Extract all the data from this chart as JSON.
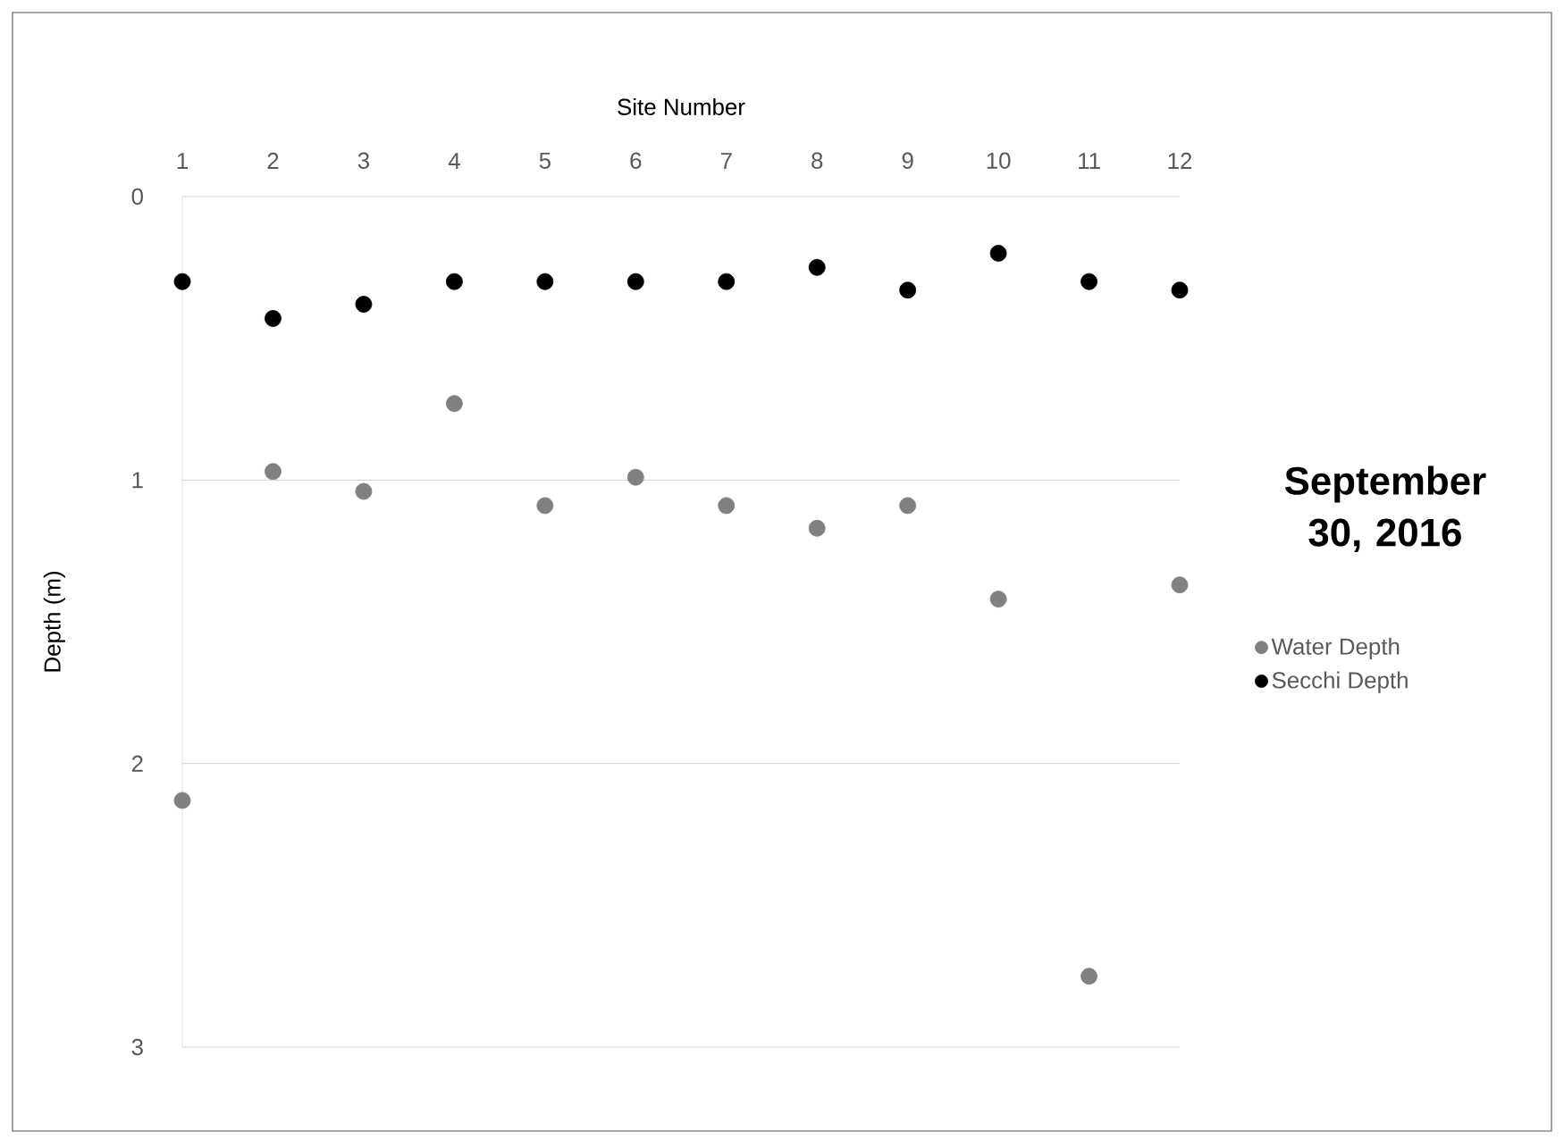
{
  "chart_data": {
    "type": "scatter",
    "title": "September 30, 2016",
    "xlabel": "Site Number",
    "ylabel": "Depth (m)",
    "x": [
      1,
      2,
      3,
      4,
      5,
      6,
      7,
      8,
      9,
      10,
      11,
      12
    ],
    "series": [
      {
        "name": "Water Depth",
        "color": "#808080",
        "values": [
          2.13,
          0.97,
          1.04,
          0.73,
          1.09,
          0.99,
          1.09,
          1.17,
          1.09,
          1.42,
          2.75,
          1.37
        ]
      },
      {
        "name": "Secchi Depth",
        "color": "#000000",
        "values": [
          0.3,
          0.43,
          0.38,
          0.3,
          0.3,
          0.3,
          0.3,
          0.25,
          0.33,
          0.2,
          0.3,
          0.33
        ]
      }
    ],
    "xlim": [
      1,
      12
    ],
    "xticks": [
      1,
      2,
      3,
      4,
      5,
      6,
      7,
      8,
      9,
      10,
      11,
      12
    ],
    "ylim": [
      3,
      0
    ],
    "yticks": [
      0,
      1,
      2,
      3
    ],
    "grid": "y",
    "legend": "right",
    "marker": "circle"
  }
}
